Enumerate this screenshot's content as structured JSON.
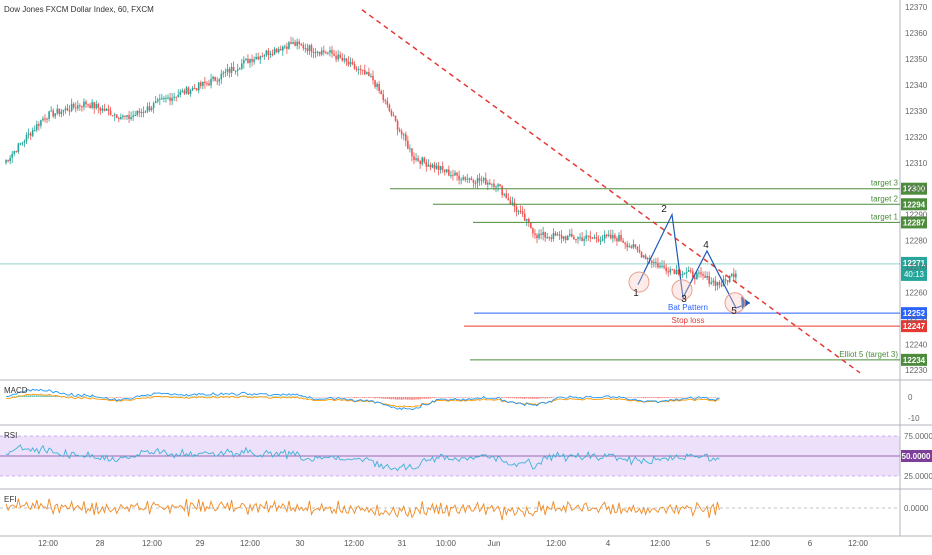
{
  "title": "Dow Jones FXCM Dollar Index, 60, FXCM",
  "chart_data": [
    {
      "type": "candlestick",
      "title": "Dow Jones FXCM Dollar Index, 60, FXCM",
      "y_axis": {
        "ylim": [
          12227,
          12372
        ],
        "ticks": [
          "12370",
          "12360",
          "12350",
          "12340",
          "12330",
          "12320",
          "12310",
          "12300",
          "12290",
          "12280",
          "12270",
          "12260",
          "12250",
          "12240",
          "12230"
        ]
      },
      "x_axis": {
        "ticks": [
          "12:00",
          "28",
          "12:00",
          "29",
          "12:00",
          "30",
          "12:00",
          "31",
          "10:00",
          "Jun",
          "12:00",
          "4",
          "12:00",
          "5",
          "12:00",
          "6",
          "12:00"
        ]
      },
      "price_anchors": {
        "bars": [
          0,
          20,
          40,
          60,
          80,
          100,
          120,
          140,
          160,
          180,
          200,
          220,
          240,
          260,
          280,
          300,
          320,
          340,
          350,
          357
        ],
        "close": [
          12310,
          12328,
          12333,
          12327,
          12335,
          12341,
          12350,
          12356,
          12352,
          12342,
          12312,
          12305,
          12302,
          12282,
          12281,
          12281,
          12270,
          12266,
          12263,
          12268
        ]
      },
      "levels": [
        {
          "label": "target 3",
          "value": 12300,
          "tag": "12300",
          "color": "#4c8c3c"
        },
        {
          "label": "target 2",
          "value": 12294,
          "tag": "12294",
          "color": "#4c8c3c"
        },
        {
          "label": "target 1",
          "value": 12287,
          "tag": "12287",
          "color": "#4c8c3c"
        },
        {
          "label": "Bat Pattern",
          "value": 12252,
          "tag": "12252",
          "color": "#2962ff"
        },
        {
          "label": "Stop loss",
          "value": 12247,
          "tag": "12247",
          "color": "#e53935"
        },
        {
          "label": "Elliot 5 (target 3)",
          "value": 12234,
          "tag": "12234",
          "color": "#4c8c3c"
        }
      ],
      "current_price": {
        "value": 12271,
        "tag": "12271",
        "countdown": "40:13",
        "color": "#26a69a"
      },
      "wave_labels": [
        "1",
        "2",
        "3",
        "4",
        "5"
      ],
      "colors": {
        "up": "#26a69a",
        "down": "#ef5350",
        "trendline": "#e53935",
        "wave": "#1e5ab4",
        "circles": "#e8a090"
      }
    },
    {
      "type": "line",
      "title": "MACD",
      "ticks": [
        "0",
        "-10"
      ],
      "colors": {
        "macd": "#2196f3",
        "signal": "#ff9800",
        "hist_up": "#26a69a",
        "hist_down": "#ef5350"
      }
    },
    {
      "type": "line",
      "title": "RSI",
      "ticks": [
        "75.0000",
        "25.0000"
      ],
      "tag": "50.0000",
      "colors": {
        "rsi": "#3fb2d6",
        "band": "#ede0fb",
        "band_line": "#9c6ade",
        "mid": "#7b3f9a"
      }
    },
    {
      "type": "line",
      "title": "EFI",
      "ticks": [
        "0.0000"
      ],
      "colors": {
        "efi": "#f08a24"
      }
    }
  ]
}
